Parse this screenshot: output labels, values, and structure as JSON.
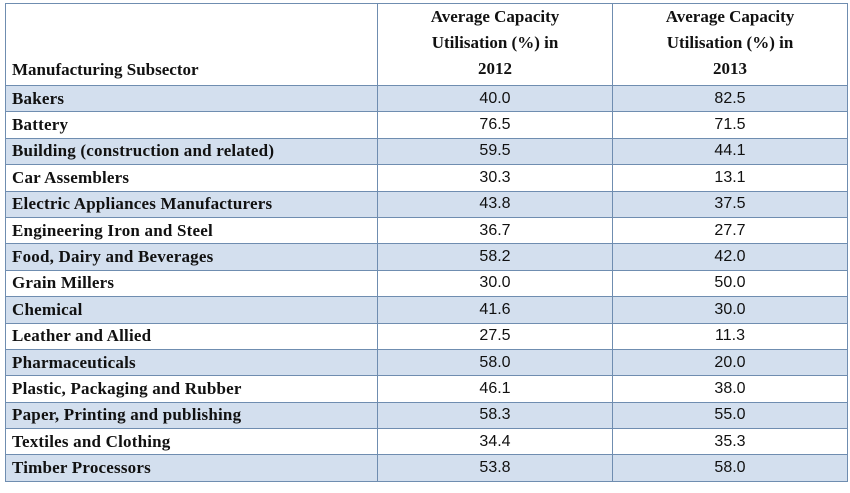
{
  "chart_data": {
    "type": "table",
    "columns": [
      "Manufacturing Subsector",
      "Average Capacity Utilisation (%) in 2012",
      "Average Capacity Utilisation (%) in 2013"
    ],
    "header_lines": {
      "col2": [
        "Average Capacity",
        "Utilisation (%) in",
        "2012"
      ],
      "col3": [
        "Average Capacity",
        "Utilisation (%) in",
        "2013"
      ]
    },
    "rows": [
      {
        "subsector": "Bakers",
        "y2012": "40.0",
        "y2013": "82.5"
      },
      {
        "subsector": "Battery",
        "y2012": "76.5",
        "y2013": "71.5"
      },
      {
        "subsector": "Building (construction and related)",
        "y2012": "59.5",
        "y2013": "44.1"
      },
      {
        "subsector": "Car Assemblers",
        "y2012": "30.3",
        "y2013": "13.1"
      },
      {
        "subsector": "Electric Appliances Manufacturers",
        "y2012": "43.8",
        "y2013": "37.5"
      },
      {
        "subsector": "Engineering Iron and Steel",
        "y2012": "36.7",
        "y2013": "27.7"
      },
      {
        "subsector": "Food, Dairy and Beverages",
        "y2012": "58.2",
        "y2013": "42.0"
      },
      {
        "subsector": "Grain Millers",
        "y2012": "30.0",
        "y2013": "50.0"
      },
      {
        "subsector": "Chemical",
        "y2012": "41.6",
        "y2013": "30.0"
      },
      {
        "subsector": "Leather and Allied",
        "y2012": "27.5",
        "y2013": "11.3"
      },
      {
        "subsector": "Pharmaceuticals",
        "y2012": "58.0",
        "y2013": "20.0"
      },
      {
        "subsector": "Plastic, Packaging and Rubber",
        "y2012": "46.1",
        "y2013": "38.0"
      },
      {
        "subsector": "Paper, Printing and publishing",
        "y2012": "58.3",
        "y2013": "55.0"
      },
      {
        "subsector": "Textiles and Clothing",
        "y2012": "34.4",
        "y2013": "35.3"
      },
      {
        "subsector": "Timber Processors",
        "y2012": "53.8",
        "y2013": "58.0"
      }
    ]
  },
  "colors": {
    "border": "#6f8db0",
    "shaded_row": "#d3dfee",
    "plain_row": "#ffffff"
  }
}
